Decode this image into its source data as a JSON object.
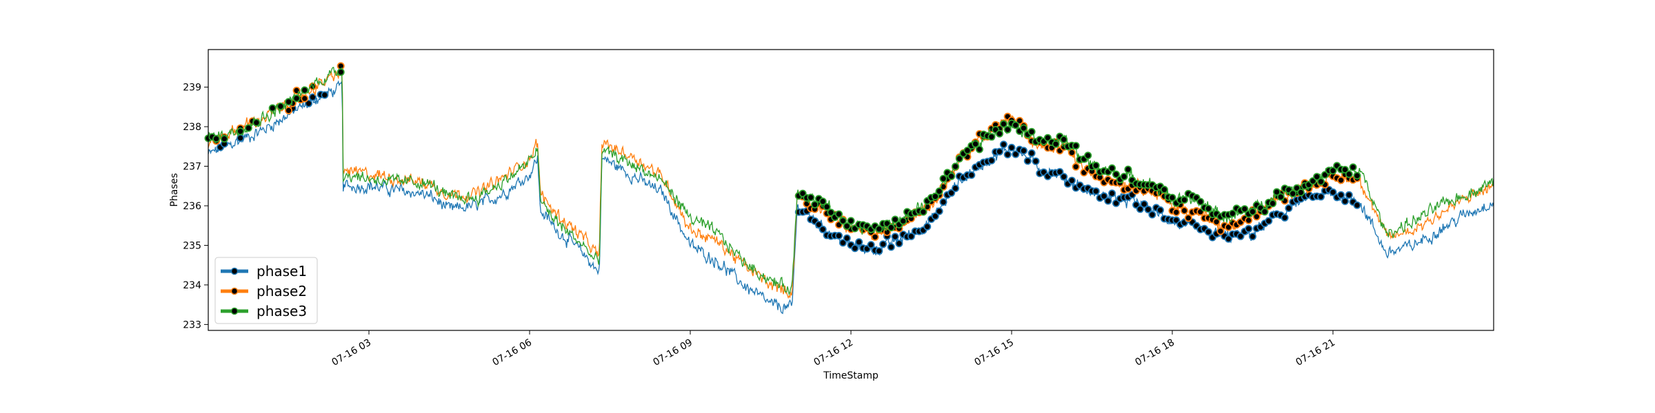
{
  "chart_data": {
    "type": "line",
    "title": "",
    "xlabel": "TimeStamp",
    "ylabel": "Phases",
    "x_range": [
      "2023-07-16 00:00",
      "2023-07-17 00:00"
    ],
    "ylim": [
      232.85,
      239.95
    ],
    "grid": false,
    "legend_position": "lower-left",
    "x_tick_labels": [
      "07-16 03",
      "07-16 06",
      "07-16 09",
      "07-16 12",
      "07-16 15",
      "07-16 18",
      "07-16 21"
    ],
    "x_tick_hours": [
      3,
      6,
      9,
      12,
      15,
      18,
      21
    ],
    "y_ticks": [
      233,
      234,
      235,
      236,
      237,
      238,
      239
    ],
    "series": [
      {
        "name": "phase1",
        "color": "#1f77b4",
        "anchors": [
          [
            0.0,
            237.3
          ],
          [
            0.5,
            237.6
          ],
          [
            1.0,
            237.9
          ],
          [
            1.5,
            238.3
          ],
          [
            2.0,
            238.7
          ],
          [
            2.5,
            239.0
          ],
          [
            2.52,
            236.5
          ],
          [
            3.0,
            236.5
          ],
          [
            3.5,
            236.4
          ],
          [
            4.0,
            236.3
          ],
          [
            4.2,
            236.2
          ],
          [
            4.5,
            235.9
          ],
          [
            5.0,
            236.0
          ],
          [
            5.5,
            236.3
          ],
          [
            6.0,
            236.8
          ],
          [
            6.15,
            237.2
          ],
          [
            6.2,
            235.9
          ],
          [
            6.5,
            235.4
          ],
          [
            7.0,
            234.8
          ],
          [
            7.3,
            234.3
          ],
          [
            7.35,
            237.2
          ],
          [
            7.5,
            237.1
          ],
          [
            8.0,
            236.7
          ],
          [
            8.5,
            236.3
          ],
          [
            9.0,
            235.0
          ],
          [
            9.5,
            234.6
          ],
          [
            10.0,
            234.0
          ],
          [
            10.5,
            233.5
          ],
          [
            10.9,
            233.4
          ],
          [
            11.0,
            236.0
          ],
          [
            11.5,
            235.4
          ],
          [
            12.0,
            235.0
          ],
          [
            12.5,
            234.9
          ],
          [
            13.0,
            235.2
          ],
          [
            13.5,
            235.6
          ],
          [
            14.0,
            236.6
          ],
          [
            14.5,
            237.1
          ],
          [
            15.0,
            237.5
          ],
          [
            15.5,
            237.0
          ],
          [
            16.0,
            236.7
          ],
          [
            16.5,
            236.3
          ],
          [
            17.0,
            236.2
          ],
          [
            17.5,
            236.0
          ],
          [
            18.0,
            235.6
          ],
          [
            18.5,
            235.4
          ],
          [
            19.0,
            235.2
          ],
          [
            19.5,
            235.3
          ],
          [
            20.0,
            235.8
          ],
          [
            20.5,
            236.2
          ],
          [
            21.0,
            236.3
          ],
          [
            21.5,
            236.1
          ],
          [
            22.0,
            234.8
          ],
          [
            22.5,
            235.0
          ],
          [
            23.0,
            235.4
          ],
          [
            23.5,
            235.8
          ],
          [
            24.0,
            236.1
          ]
        ]
      },
      {
        "name": "phase2",
        "color": "#ff7f0e",
        "anchors": [
          [
            0.0,
            237.6
          ],
          [
            0.5,
            237.9
          ],
          [
            1.0,
            238.2
          ],
          [
            1.5,
            238.6
          ],
          [
            2.0,
            239.0
          ],
          [
            2.5,
            239.4
          ],
          [
            2.52,
            236.9
          ],
          [
            3.0,
            236.8
          ],
          [
            3.5,
            236.7
          ],
          [
            4.0,
            236.6
          ],
          [
            4.2,
            236.5
          ],
          [
            4.5,
            236.3
          ],
          [
            5.0,
            236.3
          ],
          [
            5.5,
            236.7
          ],
          [
            6.0,
            237.2
          ],
          [
            6.15,
            237.6
          ],
          [
            6.2,
            236.3
          ],
          [
            6.5,
            235.8
          ],
          [
            7.0,
            235.2
          ],
          [
            7.3,
            234.7
          ],
          [
            7.35,
            237.6
          ],
          [
            7.5,
            237.5
          ],
          [
            8.0,
            237.2
          ],
          [
            8.5,
            236.7
          ],
          [
            9.0,
            235.4
          ],
          [
            9.5,
            235.1
          ],
          [
            10.0,
            234.5
          ],
          [
            10.5,
            234.0
          ],
          [
            10.9,
            233.8
          ],
          [
            11.0,
            236.3
          ],
          [
            11.5,
            235.9
          ],
          [
            12.0,
            235.4
          ],
          [
            12.5,
            235.3
          ],
          [
            13.0,
            235.6
          ],
          [
            13.5,
            236.0
          ],
          [
            14.0,
            237.1
          ],
          [
            14.5,
            237.8
          ],
          [
            15.0,
            238.2
          ],
          [
            15.5,
            237.6
          ],
          [
            16.0,
            237.4
          ],
          [
            16.5,
            236.8
          ],
          [
            17.0,
            236.6
          ],
          [
            17.5,
            236.5
          ],
          [
            18.0,
            236.0
          ],
          [
            18.5,
            235.8
          ],
          [
            19.0,
            235.4
          ],
          [
            19.5,
            235.7
          ],
          [
            20.0,
            236.2
          ],
          [
            20.5,
            236.5
          ],
          [
            21.0,
            236.7
          ],
          [
            21.5,
            236.7
          ],
          [
            22.0,
            235.2
          ],
          [
            22.5,
            235.4
          ],
          [
            23.0,
            235.8
          ],
          [
            23.5,
            236.2
          ],
          [
            24.0,
            236.5
          ]
        ]
      },
      {
        "name": "phase3",
        "color": "#2ca02c",
        "anchors": [
          [
            0.0,
            237.7
          ],
          [
            0.5,
            237.9
          ],
          [
            1.0,
            238.2
          ],
          [
            1.5,
            238.6
          ],
          [
            2.0,
            239.1
          ],
          [
            2.5,
            239.5
          ],
          [
            2.52,
            236.8
          ],
          [
            3.0,
            236.7
          ],
          [
            3.5,
            236.6
          ],
          [
            4.0,
            236.6
          ],
          [
            4.2,
            236.5
          ],
          [
            4.5,
            236.2
          ],
          [
            5.0,
            236.2
          ],
          [
            5.5,
            236.6
          ],
          [
            6.0,
            237.1
          ],
          [
            6.15,
            237.5
          ],
          [
            6.2,
            236.1
          ],
          [
            6.5,
            235.6
          ],
          [
            7.0,
            235.0
          ],
          [
            7.3,
            234.5
          ],
          [
            7.35,
            237.4
          ],
          [
            7.5,
            237.3
          ],
          [
            8.0,
            237.0
          ],
          [
            8.5,
            236.6
          ],
          [
            9.0,
            235.7
          ],
          [
            9.5,
            235.3
          ],
          [
            10.0,
            234.6
          ],
          [
            10.5,
            234.1
          ],
          [
            10.9,
            233.9
          ],
          [
            11.0,
            236.4
          ],
          [
            11.5,
            236.0
          ],
          [
            12.0,
            235.5
          ],
          [
            12.5,
            235.4
          ],
          [
            13.0,
            235.7
          ],
          [
            13.5,
            236.1
          ],
          [
            14.0,
            237.2
          ],
          [
            14.5,
            237.7
          ],
          [
            15.0,
            238.1
          ],
          [
            15.5,
            237.7
          ],
          [
            16.0,
            237.6
          ],
          [
            16.5,
            237.0
          ],
          [
            17.0,
            236.8
          ],
          [
            17.5,
            236.6
          ],
          [
            18.0,
            236.2
          ],
          [
            18.5,
            236.1
          ],
          [
            19.0,
            235.7
          ],
          [
            19.5,
            235.9
          ],
          [
            20.0,
            236.3
          ],
          [
            20.5,
            236.5
          ],
          [
            21.0,
            236.9
          ],
          [
            21.5,
            236.9
          ],
          [
            22.0,
            235.3
          ],
          [
            22.5,
            235.6
          ],
          [
            23.0,
            236.0
          ],
          [
            23.5,
            236.3
          ],
          [
            24.0,
            236.6
          ]
        ]
      }
    ],
    "markers": {
      "color": "#000000",
      "hour_ranges": [
        [
          0.0,
          2.5
        ],
        [
          11.0,
          21.5
        ]
      ]
    }
  }
}
